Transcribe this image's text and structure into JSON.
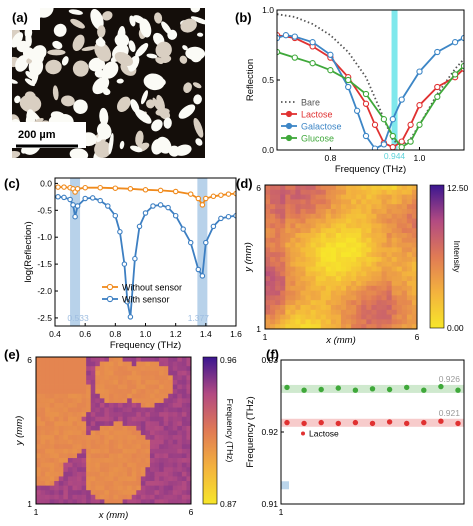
{
  "panels": {
    "a": {
      "label": "(a)",
      "scalebar": "200 µm"
    },
    "b": {
      "label": "(b)"
    },
    "c": {
      "label": "(c)"
    },
    "d": {
      "label": "(d)"
    },
    "e": {
      "label": "(e)"
    },
    "f": {
      "label": "(f)"
    }
  },
  "colors": {
    "bare": "#555555",
    "lactose": "#e03131",
    "galactose": "#3d86c6",
    "glucose": "#3fa83a",
    "without_sensor": "#f08a1c",
    "with_sensor": "#3d7fc2",
    "highlight_b": "#7fe8ec",
    "highlight_c": "#b8d2ea"
  },
  "chart_data": [
    {
      "panel": "b",
      "type": "line",
      "xlabel": "Frequency (THz)",
      "ylabel": "Reflection",
      "xlim": [
        0.68,
        1.1
      ],
      "ylim": [
        0,
        1.0
      ],
      "xticks": [
        "0.8",
        "1.0"
      ],
      "yticks": [
        "0.0",
        "0.5",
        "1.0"
      ],
      "annotation": "0.944",
      "legend_position": "bottom-left",
      "series": [
        {
          "name": "Bare",
          "style": "dotted",
          "x": [
            0.68,
            0.72,
            0.76,
            0.8,
            0.84,
            0.88,
            0.91,
            0.94,
            0.96,
            0.98,
            1.0,
            1.04,
            1.08,
            1.1
          ],
          "y": [
            0.97,
            0.95,
            0.9,
            0.82,
            0.7,
            0.52,
            0.3,
            0.07,
            0.03,
            0.08,
            0.18,
            0.4,
            0.58,
            0.65
          ]
        },
        {
          "name": "Lactose",
          "x": [
            0.68,
            0.72,
            0.76,
            0.8,
            0.84,
            0.88,
            0.9,
            0.92,
            0.94,
            0.96,
            0.98,
            1.0,
            1.04,
            1.08,
            1.1
          ],
          "y": [
            0.82,
            0.8,
            0.74,
            0.66,
            0.52,
            0.33,
            0.18,
            0.05,
            0.02,
            0.06,
            0.18,
            0.32,
            0.45,
            0.52,
            0.58
          ]
        },
        {
          "name": "Galactose",
          "x": [
            0.68,
            0.7,
            0.72,
            0.76,
            0.8,
            0.84,
            0.86,
            0.88,
            0.9,
            0.92,
            0.94,
            0.96,
            1.0,
            1.04,
            1.08,
            1.1
          ],
          "y": [
            0.8,
            0.82,
            0.81,
            0.77,
            0.68,
            0.45,
            0.28,
            0.1,
            0.01,
            0.04,
            0.22,
            0.36,
            0.56,
            0.7,
            0.77,
            0.8
          ]
        },
        {
          "name": "Glucose",
          "x": [
            0.68,
            0.72,
            0.76,
            0.8,
            0.84,
            0.88,
            0.92,
            0.94,
            0.96,
            0.98,
            1.0,
            1.04,
            1.08,
            1.1
          ],
          "y": [
            0.7,
            0.66,
            0.62,
            0.57,
            0.5,
            0.4,
            0.22,
            0.1,
            0.02,
            0.06,
            0.18,
            0.38,
            0.54,
            0.6
          ]
        }
      ]
    },
    {
      "panel": "c",
      "type": "line",
      "xlabel": "Frequency (THz)",
      "ylabel": "log(Reflection)",
      "xlim": [
        0.4,
        1.6
      ],
      "ylim": [
        -2.65,
        0.1
      ],
      "xticks": [
        "0.4",
        "0.6",
        "0.8",
        "1.0",
        "1.2",
        "1.4",
        "1.6"
      ],
      "yticks": [
        "0.0",
        "-0.5",
        "-1.0",
        "-1.5",
        "-2.0",
        "-2.5"
      ],
      "bands": [
        "0.533",
        "1.377"
      ],
      "legend_position": "bottom-left",
      "series": [
        {
          "name": "Without sensor",
          "x": [
            0.42,
            0.46,
            0.5,
            0.52,
            0.533,
            0.55,
            0.6,
            0.7,
            0.8,
            0.9,
            1.0,
            1.1,
            1.2,
            1.3,
            1.35,
            1.377,
            1.4,
            1.45,
            1.5,
            1.55,
            1.6
          ],
          "y": [
            -0.07,
            -0.07,
            -0.08,
            -0.1,
            -0.16,
            -0.1,
            -0.08,
            -0.08,
            -0.09,
            -0.1,
            -0.12,
            -0.13,
            -0.15,
            -0.2,
            -0.28,
            -0.4,
            -0.28,
            -0.24,
            -0.22,
            -0.2,
            -0.19
          ]
        },
        {
          "name": "With sensor",
          "x": [
            0.42,
            0.46,
            0.5,
            0.52,
            0.533,
            0.55,
            0.6,
            0.65,
            0.7,
            0.75,
            0.8,
            0.83,
            0.86,
            0.88,
            0.9,
            0.93,
            0.96,
            1.0,
            1.05,
            1.1,
            1.15,
            1.2,
            1.25,
            1.3,
            1.35,
            1.377,
            1.4,
            1.45,
            1.5,
            1.55,
            1.6
          ],
          "y": [
            -0.25,
            -0.26,
            -0.3,
            -0.4,
            -0.62,
            -0.42,
            -0.28,
            -0.27,
            -0.32,
            -0.42,
            -0.6,
            -0.9,
            -1.5,
            -2.2,
            -2.48,
            -1.4,
            -0.8,
            -0.55,
            -0.42,
            -0.4,
            -0.45,
            -0.6,
            -0.85,
            -1.1,
            -1.6,
            -1.72,
            -1.1,
            -0.8,
            -0.65,
            -0.62,
            -0.6
          ]
        }
      ]
    },
    {
      "panel": "d",
      "type": "heatmap",
      "xlabel": "x (mm)",
      "ylabel": "y (mm)",
      "xticks": [
        "1",
        "6"
      ],
      "yticks": [
        "1",
        "6"
      ],
      "colorbar": {
        "label": "Intensity",
        "max": "12.50",
        "min": "0.00"
      }
    },
    {
      "panel": "e",
      "type": "heatmap",
      "xlabel": "x (mm)",
      "ylabel": "y (mm)",
      "xticks": [
        "1",
        "6"
      ],
      "yticks": [
        "1",
        "6"
      ],
      "colorbar": {
        "label": "Frequency (THz)",
        "max": "0.96",
        "min": "0.87"
      }
    },
    {
      "panel": "f",
      "type": "scatter",
      "ylabel": "Frequency (THz)",
      "ylim": [
        0.91,
        0.93
      ],
      "yticks": [
        "0.91",
        "0.92",
        "0.93"
      ],
      "xticks": [
        "1"
      ],
      "series": [
        {
          "name": "",
          "color": "glucose",
          "mean_label": "0.926",
          "y": [
            0.9262,
            0.9258,
            0.9259,
            0.9261,
            0.9258,
            0.926,
            0.9259,
            0.9262,
            0.9258,
            0.9263,
            0.9258
          ]
        },
        {
          "name": "Lactose",
          "color": "lactose",
          "mean_label": "0.921",
          "y": [
            0.9213,
            0.9212,
            0.9213,
            0.9212,
            0.9213,
            0.9212,
            0.9214,
            0.9212,
            0.9213,
            0.9215,
            0.9212
          ]
        },
        {
          "name": "",
          "color": "galactose",
          "mean_label": "",
          "y": [
            0.9126
          ]
        }
      ]
    }
  ]
}
